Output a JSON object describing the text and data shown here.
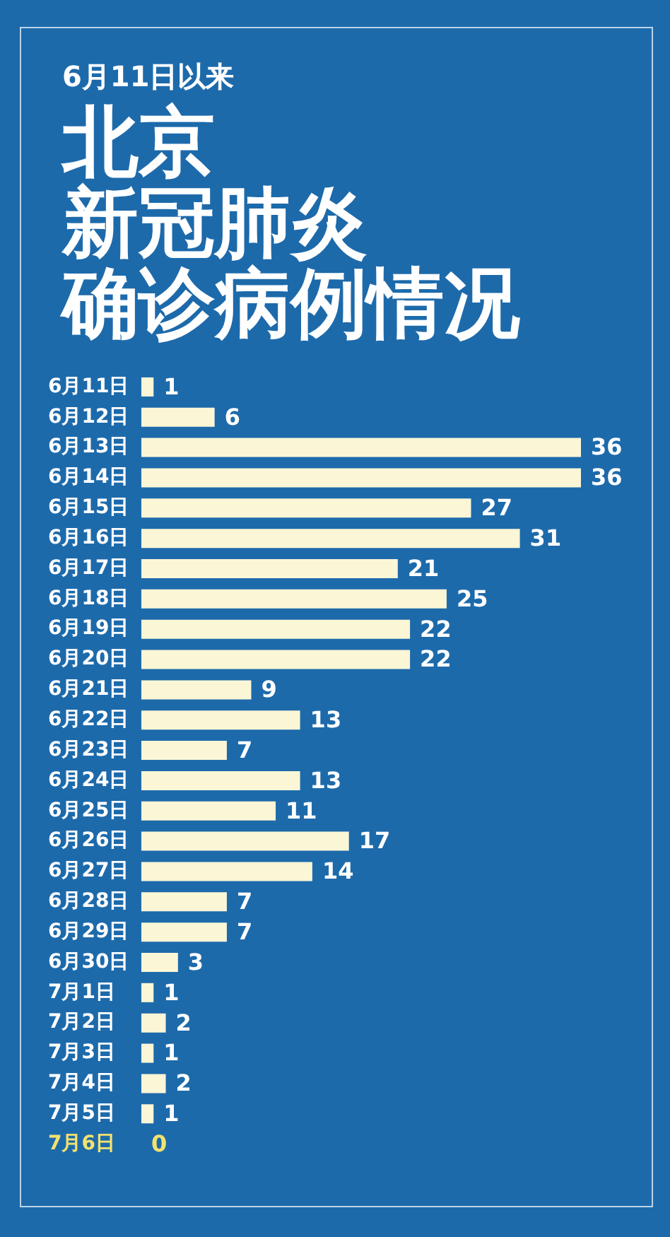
{
  "chart_data": {
    "type": "bar",
    "orientation": "horizontal",
    "subtitle": "6月11日以来",
    "title": "北京新冠肺炎确诊病例情况",
    "categories": [
      "6月11日",
      "6月12日",
      "6月13日",
      "6月14日",
      "6月15日",
      "6月16日",
      "6月17日",
      "6月18日",
      "6月19日",
      "6月20日",
      "6月21日",
      "6月22日",
      "6月23日",
      "6月24日",
      "6月25日",
      "6月26日",
      "6月27日",
      "6月28日",
      "6月29日",
      "6月30日",
      "7月1日",
      "7月2日",
      "7月3日",
      "7月4日",
      "7月5日",
      "7月6日"
    ],
    "values": [
      1,
      6,
      36,
      36,
      27,
      31,
      21,
      25,
      22,
      22,
      9,
      13,
      7,
      13,
      11,
      17,
      14,
      7,
      7,
      3,
      1,
      2,
      1,
      2,
      1,
      0
    ],
    "color": "#fbf6d6",
    "colors": [
      "#fbf6d6",
      "#fbf6d6",
      "#fbf6d6",
      "#fbf6d6",
      "#fbf6d6",
      "#fbf6d6",
      "#fbf6d6",
      "#fbf6d6",
      "#fbf6d6",
      "#fbf6d6",
      "#fbf6d6",
      "#fbf6d6",
      "#fbf6d6",
      "#fbf6d6",
      "#fbf6d6",
      "#fbf6d6",
      "#fbf6d6",
      "#fbf6d6",
      "#fbf6d6",
      "#fbf6d6",
      "#fbf6d6",
      "#fbf6d6",
      "#fbf6d6",
      "#fbf6d6",
      "#fbf6d6",
      "#f2e26e"
    ],
    "data_labels": true
  }
}
